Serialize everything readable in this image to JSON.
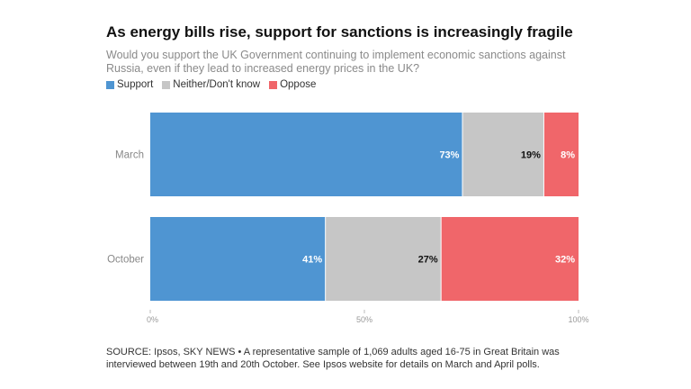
{
  "header": {
    "title": "As energy bills rise, support for sanctions is increasingly fragile",
    "subtitle": "Would you support the UK Government continuing to implement economic sanctions against Russia, even if they lead to increased energy prices in the UK?"
  },
  "legend": [
    {
      "label": "Support",
      "color": "#4f95d2"
    },
    {
      "label": "Neither/Don't know",
      "color": "#c6c6c6"
    },
    {
      "label": "Oppose",
      "color": "#f0666a"
    }
  ],
  "chart_data": {
    "type": "bar",
    "orientation": "horizontal",
    "stacked": true,
    "categories": [
      "March",
      "October"
    ],
    "series": [
      {
        "name": "Support",
        "values": [
          73,
          41
        ],
        "labels": [
          "73%",
          "41%"
        ],
        "color": "#4f95d2",
        "label_color": "#ffffff"
      },
      {
        "name": "Neither/Don't know",
        "values": [
          19,
          27
        ],
        "labels": [
          "19%",
          "27%"
        ],
        "color": "#c6c6c6",
        "label_color": "#111111"
      },
      {
        "name": "Oppose",
        "values": [
          8,
          32
        ],
        "labels": [
          "8%",
          "32%"
        ],
        "color": "#f0666a",
        "label_color": "#ffffff"
      }
    ],
    "xlim": [
      0,
      100
    ],
    "xticks": [
      0,
      50,
      100
    ],
    "xtick_labels": [
      "0%",
      "50%",
      "100%"
    ],
    "legend_position": "top-left",
    "grid": false
  },
  "footer": {
    "source": "SOURCE: Ipsos, SKY NEWS • A representative sample of 1,069 adults aged 16-75 in Great Britain was interviewed between 19th and 20th October. See Ipsos website for details on March and April polls."
  }
}
